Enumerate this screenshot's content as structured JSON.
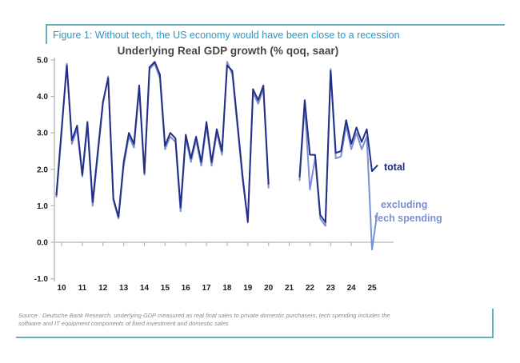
{
  "figure": {
    "title": "Figure 1: Without tech, the US economy would have been close to a recession",
    "accent_color": "#2b96c5",
    "border_color": "#66aebe"
  },
  "chart": {
    "title": "Underlying Real GDP growth (% qoq, saar)",
    "series_labels": {
      "total": "total",
      "excluding_line1": "excluding",
      "excluding_line2": "tech spending"
    },
    "colors": {
      "total_line": "#232f85",
      "excluding_line": "#7b8fd4",
      "axis": "#b3b3b3",
      "tick_text": "#1c1c1c"
    }
  },
  "chart_data": {
    "type": "line",
    "title": "Underlying Real GDP growth (% qoq, saar)",
    "x_tick_labels": [
      "10",
      "11",
      "12",
      "13",
      "14",
      "15",
      "16",
      "17",
      "18",
      "19",
      "20",
      "21",
      "22",
      "23",
      "24",
      "25"
    ],
    "y_tick_labels": [
      "5.0",
      "4.0",
      "3.0",
      "2.0",
      "1.0",
      "0.0",
      "-1.0"
    ],
    "ylim": [
      -1.0,
      5.0
    ],
    "grid": "x-axis baseline at 0.0 only",
    "legend_position": "direct labels at line ends",
    "gap_note": "line break around 2020 (pandemic quarters omitted)",
    "x_start": 9.75,
    "x_step": 0.25,
    "series": [
      {
        "name": "total",
        "values": [
          1.3,
          3.1,
          4.85,
          2.8,
          3.2,
          1.85,
          3.3,
          1.1,
          2.5,
          3.85,
          4.5,
          1.2,
          0.7,
          2.2,
          3.0,
          2.7,
          4.3,
          1.9,
          4.8,
          4.95,
          4.6,
          2.65,
          3.0,
          2.85,
          0.95,
          2.95,
          2.3,
          2.9,
          2.2,
          3.3,
          2.2,
          3.1,
          2.5,
          4.85,
          4.7,
          3.25,
          1.8,
          0.55,
          4.2,
          3.9,
          4.3,
          1.6,
          null,
          null,
          null,
          null,
          null,
          1.8,
          3.9,
          2.4,
          2.4,
          0.75,
          0.55,
          4.7,
          2.45,
          2.5,
          3.35,
          2.7,
          3.15,
          2.75,
          3.1,
          1.95,
          2.1
        ]
      },
      {
        "name": "excluding tech spending",
        "values": [
          1.25,
          3.0,
          4.9,
          2.7,
          3.1,
          1.8,
          3.2,
          1.0,
          2.4,
          3.8,
          4.55,
          1.15,
          0.65,
          2.1,
          2.9,
          2.6,
          4.2,
          1.85,
          4.75,
          4.9,
          4.5,
          2.55,
          2.9,
          2.75,
          0.85,
          2.85,
          2.2,
          2.8,
          2.1,
          3.2,
          2.1,
          3.0,
          2.4,
          4.95,
          4.6,
          3.15,
          1.7,
          0.6,
          4.1,
          3.8,
          4.2,
          1.5,
          null,
          null,
          null,
          null,
          null,
          1.7,
          3.75,
          1.45,
          2.3,
          0.65,
          0.45,
          4.75,
          2.3,
          2.35,
          3.2,
          2.55,
          3.0,
          2.55,
          2.9,
          -0.2,
          0.8
        ]
      }
    ]
  },
  "source": {
    "line1": "Source : Deutsche Bank Research, underlying GDP measured as real final sales to private domestic purchasers, tech spending includes the",
    "line2": "software and IT equipment components of fixed investment and domestic sales"
  }
}
